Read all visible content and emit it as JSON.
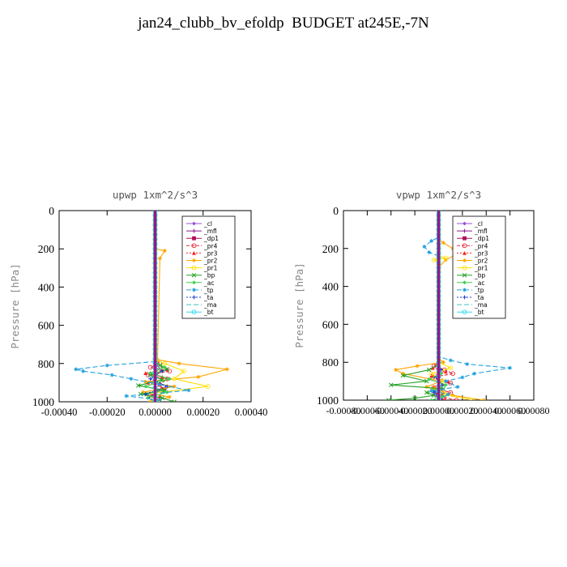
{
  "page": {
    "title": "jan24_clubb_bv_efoldp  BUDGET at245E,-7N"
  },
  "chart_data": [
    {
      "type": "line",
      "title": "upwp   1xm^2/s^3",
      "xlabel": "",
      "ylabel": "Pressure  [hPa]",
      "xlim": [
        -0.0004,
        0.0004
      ],
      "ylim": [
        1000,
        0
      ],
      "x_ticks": [
        -0.0004,
        -0.0002,
        0.0,
        0.0002,
        0.0004
      ],
      "x_tick_labels": [
        "-0.00040",
        "-0.00020",
        "0.00000",
        "0.00020",
        "0.00040"
      ],
      "y_ticks": [
        0,
        200,
        400,
        600,
        800,
        1000
      ],
      "y_tick_labels": [
        "0",
        "200",
        "400",
        "600",
        "800",
        "1000"
      ],
      "legend_position": "top-right",
      "series": [
        {
          "name": "_cl",
          "color": "#9a4fd4",
          "marker": "diamond",
          "dash": "",
          "points": [
            [
              0,
              1000
            ],
            [
              0,
              800
            ],
            [
              0,
              0
            ]
          ]
        },
        {
          "name": "_mfl",
          "color": "#8e1a8e",
          "marker": "plus",
          "dash": "",
          "points": [
            [
              0,
              1000
            ],
            [
              0,
              0
            ]
          ]
        },
        {
          "name": "_dp1",
          "color": "#b0105a",
          "marker": "square",
          "dash": "",
          "points": [
            [
              5e-06,
              1000
            ],
            [
              -5e-06,
              970
            ],
            [
              4e-06,
              940
            ],
            [
              0,
              900
            ],
            [
              0,
              0
            ]
          ]
        },
        {
          "name": "_pr4",
          "color": "#e8283c",
          "marker": "circle",
          "dash": "4,2",
          "points": [
            [
              0,
              1000
            ],
            [
              1e-05,
              985
            ],
            [
              -2e-05,
              960
            ],
            [
              3e-05,
              935
            ],
            [
              2e-05,
              910
            ],
            [
              5e-05,
              880
            ],
            [
              -3e-05,
              860
            ],
            [
              6e-05,
              840
            ],
            [
              -2e-05,
              820
            ],
            [
              2e-05,
              800
            ],
            [
              0,
              780
            ],
            [
              0,
              0
            ]
          ]
        },
        {
          "name": "_pr3",
          "color": "#ff2020",
          "marker": "triangle",
          "dash": "2,2",
          "points": [
            [
              0,
              1000
            ],
            [
              2e-05,
              970
            ],
            [
              4e-05,
              930
            ],
            [
              -3e-05,
              900
            ],
            [
              3e-05,
              870
            ],
            [
              -4e-05,
              850
            ],
            [
              5e-05,
              830
            ],
            [
              0,
              810
            ],
            [
              0,
              0
            ]
          ]
        },
        {
          "name": "_pr2",
          "color": "#ffa500",
          "marker": "star",
          "dash": "",
          "points": [
            [
              -2e-05,
              1000
            ],
            [
              6e-05,
              975
            ],
            [
              -5e-05,
              950
            ],
            [
              8e-05,
              920
            ],
            [
              -4e-05,
              895
            ],
            [
              0.00018,
              870
            ],
            [
              0.0003,
              830
            ],
            [
              0.0001,
              800
            ],
            [
              1e-05,
              780
            ],
            [
              2e-05,
              250
            ],
            [
              4e-05,
              210
            ],
            [
              0,
              200
            ],
            [
              0,
              0
            ]
          ]
        },
        {
          "name": "_pr1",
          "color": "#ffe000",
          "marker": "circle",
          "dash": "",
          "points": [
            [
              2e-05,
              1000
            ],
            [
              -4e-05,
              960
            ],
            [
              0.00022,
              920
            ],
            [
              8e-05,
              880
            ],
            [
              0.00012,
              840
            ],
            [
              4e-05,
              800
            ],
            [
              0,
              780
            ],
            [
              0,
              0
            ]
          ]
        },
        {
          "name": "_bp",
          "color": "#22a022",
          "marker": "x",
          "dash": "",
          "points": [
            [
              8e-05,
              1000
            ],
            [
              3e-05,
              980
            ],
            [
              -6e-05,
              960
            ],
            [
              4e-05,
              940
            ],
            [
              -7e-05,
              915
            ],
            [
              3e-05,
              885
            ],
            [
              -2e-05,
              860
            ],
            [
              5e-05,
              830
            ],
            [
              2e-05,
              810
            ],
            [
              0,
              790
            ],
            [
              0,
              0
            ]
          ]
        },
        {
          "name": "_ac",
          "color": "#3ecf50",
          "marker": "diamond",
          "dash": "",
          "points": [
            [
              0,
              1000
            ],
            [
              -3e-05,
              980
            ],
            [
              5e-05,
              950
            ],
            [
              -4e-05,
              920
            ],
            [
              6e-05,
              880
            ],
            [
              -2e-05,
              850
            ],
            [
              4e-05,
              820
            ],
            [
              0,
              790
            ],
            [
              0,
              0
            ]
          ]
        },
        {
          "name": "_tp",
          "color": "#20a0e0",
          "marker": "star",
          "dash": "6,3",
          "points": [
            [
              0,
              1000
            ],
            [
              2e-05,
              990
            ],
            [
              -0.00012,
              970
            ],
            [
              0.00014,
              940
            ],
            [
              2e-05,
              910
            ],
            [
              -0.0001,
              880
            ],
            [
              -0.00018,
              860
            ],
            [
              -0.0003,
              840
            ],
            [
              -0.00033,
              830
            ],
            [
              -0.0002,
              810
            ],
            [
              0,
              790
            ],
            [
              0,
              0
            ]
          ]
        },
        {
          "name": "_ta",
          "color": "#1a3ad0",
          "marker": "plus",
          "dash": "2,2",
          "points": [
            [
              0,
              1000
            ],
            [
              -4e-05,
              960
            ],
            [
              5e-05,
              920
            ],
            [
              -2e-05,
              880
            ],
            [
              3e-05,
              840
            ],
            [
              0,
              800
            ],
            [
              0,
              0
            ]
          ]
        },
        {
          "name": "_ma",
          "color": "#40c0c0",
          "marker": "",
          "dash": "6,3",
          "points": [
            [
              0,
              1000
            ],
            [
              0,
              0
            ]
          ]
        },
        {
          "name": "_bt",
          "color": "#30d8f0",
          "marker": "circle",
          "dash": "",
          "points": [
            [
              0,
              1000
            ],
            [
              0,
              0
            ]
          ]
        }
      ]
    },
    {
      "type": "line",
      "title": "vpwp   1xm^2/s^3",
      "xlabel": "",
      "ylabel": "Pressure  [hPa]",
      "xlim": [
        -0.0008,
        0.0008
      ],
      "ylim": [
        1000,
        0
      ],
      "x_ticks": [
        -0.0008,
        -0.0006,
        -0.0004,
        -0.0002,
        0.0,
        0.0002,
        0.0004,
        0.0006,
        0.0008
      ],
      "x_tick_labels": [
        "-0.00080",
        "-0.00060",
        "-0.00040",
        "-0.00020",
        "0.00000",
        "0.00020",
        "0.00040",
        "0.00060",
        "0.00080"
      ],
      "y_ticks": [
        0,
        200,
        400,
        600,
        800,
        1000
      ],
      "y_tick_labels": [
        "0",
        "200",
        "400",
        "600",
        "800",
        "1000"
      ],
      "legend_position": "top-right",
      "series": [
        {
          "name": "_cl",
          "color": "#9a4fd4",
          "marker": "diamond",
          "dash": "",
          "points": [
            [
              0,
              1000
            ],
            [
              0,
              800
            ],
            [
              0,
              0
            ]
          ]
        },
        {
          "name": "_mfl",
          "color": "#8e1a8e",
          "marker": "plus",
          "dash": "",
          "points": [
            [
              0,
              1000
            ],
            [
              0,
              0
            ]
          ]
        },
        {
          "name": "_dp1",
          "color": "#b0105a",
          "marker": "square",
          "dash": "",
          "points": [
            [
              2e-05,
              1000
            ],
            [
              -1e-05,
              970
            ],
            [
              1e-05,
              940
            ],
            [
              0,
              900
            ],
            [
              0,
              0
            ]
          ]
        },
        {
          "name": "_pr4",
          "color": "#e8283c",
          "marker": "circle",
          "dash": "4,2",
          "points": [
            [
              0.00015,
              1000
            ],
            [
              4e-05,
              985
            ],
            [
              0.0001,
              960
            ],
            [
              -4e-05,
              935
            ],
            [
              0.0001,
              910
            ],
            [
              -5e-05,
              880
            ],
            [
              0.00012,
              860
            ],
            [
              5e-05,
              840
            ],
            [
              -4e-05,
              820
            ],
            [
              0,
              800
            ],
            [
              0,
              0
            ]
          ]
        },
        {
          "name": "_pr3",
          "color": "#ff2020",
          "marker": "triangle",
          "dash": "2,2",
          "points": [
            [
              6e-05,
              1000
            ],
            [
              3e-05,
              970
            ],
            [
              -4e-05,
              930
            ],
            [
              8e-05,
              900
            ],
            [
              -6e-05,
              870
            ],
            [
              6e-05,
              850
            ],
            [
              -5e-05,
              830
            ],
            [
              0,
              810
            ],
            [
              0,
              0
            ]
          ]
        },
        {
          "name": "_pr2",
          "color": "#ffa500",
          "marker": "star",
          "dash": "",
          "points": [
            [
              0.00038,
              1000
            ],
            [
              0.00012,
              975
            ],
            [
              4e-05,
              960
            ],
            [
              -0.0001,
              930
            ],
            [
              2e-05,
              900
            ],
            [
              -0.0003,
              860
            ],
            [
              -0.00036,
              840
            ],
            [
              -0.00018,
              820
            ],
            [
              4e-05,
              800
            ],
            [
              0,
              780
            ],
            [
              0,
              300
            ],
            [
              6e-05,
              260
            ],
            [
              0.00015,
              230
            ],
            [
              0.00012,
              200
            ],
            [
              4e-05,
              170
            ],
            [
              0,
              150
            ],
            [
              0,
              0
            ]
          ]
        },
        {
          "name": "_pr1",
          "color": "#ffe000",
          "marker": "circle",
          "dash": "",
          "points": [
            [
              0.00028,
              1000
            ],
            [
              6e-05,
              970
            ],
            [
              -4e-05,
              940
            ],
            [
              4e-05,
              900
            ],
            [
              -6e-05,
              860
            ],
            [
              0.0001,
              830
            ],
            [
              0,
              800
            ],
            [
              0,
              270
            ],
            [
              -4e-05,
              260
            ],
            [
              6e-05,
              250
            ],
            [
              0,
              240
            ],
            [
              0,
              0
            ]
          ]
        },
        {
          "name": "_bp",
          "color": "#22a022",
          "marker": "x",
          "dash": "",
          "points": [
            [
              -0.00042,
              1000
            ],
            [
              -0.0002,
              990
            ],
            [
              -4e-05,
              975
            ],
            [
              -0.0001,
              960
            ],
            [
              4e-05,
              940
            ],
            [
              -0.0004,
              920
            ],
            [
              -0.0001,
              900
            ],
            [
              -0.0003,
              870
            ],
            [
              -8e-05,
              840
            ],
            [
              0,
              810
            ],
            [
              0,
              0
            ]
          ]
        },
        {
          "name": "_ac",
          "color": "#3ecf50",
          "marker": "diamond",
          "dash": "",
          "points": [
            [
              -6e-05,
              1000
            ],
            [
              4e-05,
              980
            ],
            [
              -4e-05,
              950
            ],
            [
              6e-05,
              920
            ],
            [
              -8e-05,
              890
            ],
            [
              2e-05,
              860
            ],
            [
              0,
              820
            ],
            [
              0,
              0
            ]
          ]
        },
        {
          "name": "_tp",
          "color": "#20a0e0",
          "marker": "star",
          "dash": "6,3",
          "points": [
            [
              0,
              1000
            ],
            [
              8e-05,
              970
            ],
            [
              -6e-05,
              950
            ],
            [
              0.00016,
              930
            ],
            [
              6e-05,
              900
            ],
            [
              0.0002,
              880
            ],
            [
              0.0003,
              860
            ],
            [
              0.0006,
              830
            ],
            [
              0.00024,
              810
            ],
            [
              0.0001,
              790
            ],
            [
              0,
              770
            ],
            [
              0,
              240
            ],
            [
              -8e-05,
              220
            ],
            [
              -0.00012,
              190
            ],
            [
              -6e-05,
              160
            ],
            [
              0,
              140
            ],
            [
              0,
              0
            ]
          ]
        },
        {
          "name": "_ta",
          "color": "#1a3ad0",
          "marker": "plus",
          "dash": "2,2",
          "points": [
            [
              0,
              1000
            ],
            [
              -4e-05,
              960
            ],
            [
              3e-05,
              920
            ],
            [
              -2e-05,
              880
            ],
            [
              2e-05,
              840
            ],
            [
              0,
              800
            ],
            [
              0,
              0
            ]
          ]
        },
        {
          "name": "_ma",
          "color": "#40c0c0",
          "marker": "",
          "dash": "6,3",
          "points": [
            [
              0,
              1000
            ],
            [
              0,
              0
            ]
          ]
        },
        {
          "name": "_bt",
          "color": "#30d8f0",
          "marker": "circle",
          "dash": "",
          "points": [
            [
              0,
              1000
            ],
            [
              0,
              0
            ]
          ]
        }
      ]
    }
  ]
}
